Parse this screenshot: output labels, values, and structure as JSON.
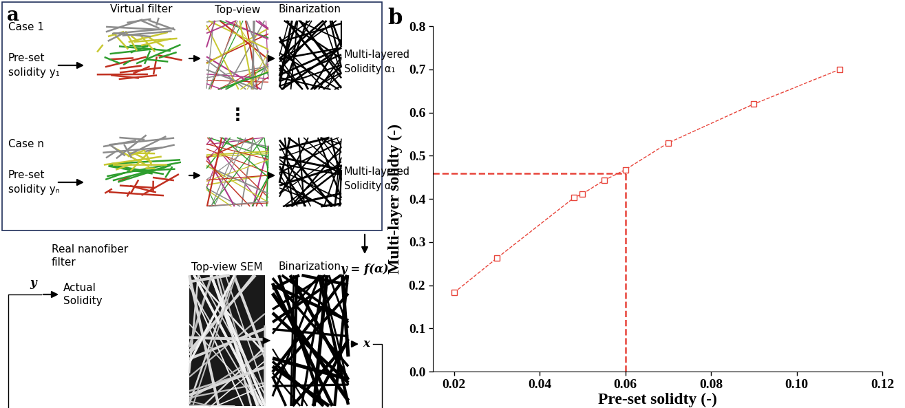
{
  "diagram": {
    "panel_label": "a",
    "columns": [
      "Virtual filter",
      "Top-view",
      "Binarization"
    ],
    "cases": [
      {
        "label": "Case 1",
        "input": "Pre-set\nsolidity y₁",
        "output": "Multi-layered\nSolidity α₁"
      },
      {
        "label": "Case n",
        "input": "Pre-set\nsolidity yₙ",
        "output": "Multi-layered\nSolidity αₙ"
      }
    ],
    "ellipsis": "⋮",
    "mapping": "y = f(α)",
    "real": {
      "title": "Real nanofiber\nfilter",
      "y": "y",
      "actual": "Actual\nSolidity",
      "columns": [
        "Top-view SEM",
        "Binarization"
      ],
      "x": "x"
    }
  },
  "chart_data": {
    "panel_label": "b",
    "type": "line",
    "x": [
      0.02,
      0.03,
      0.048,
      0.05,
      0.055,
      0.06,
      0.07,
      0.09,
      0.11
    ],
    "values": [
      0.183,
      0.263,
      0.403,
      0.412,
      0.443,
      0.468,
      0.53,
      0.62,
      0.7
    ],
    "color": "#e8443a",
    "marker": "square",
    "line_style": "dashed",
    "guide_x": 0.06,
    "guide_y": 0.46,
    "x_label": "Pre-set solidty (-)",
    "y_label": "Multi-layer solidty (-)",
    "xlim": [
      0.015,
      0.12
    ],
    "xticks": [
      0.02,
      0.04,
      0.06,
      0.08,
      {
        "value": 0.1,
        "label": "0.10"
      },
      0.12
    ],
    "ylim": [
      0.0,
      0.8
    ],
    "yticks": [
      0.0,
      0.1,
      0.2,
      0.3,
      0.4,
      0.5,
      0.6,
      0.7,
      0.8
    ],
    "grid": false
  }
}
